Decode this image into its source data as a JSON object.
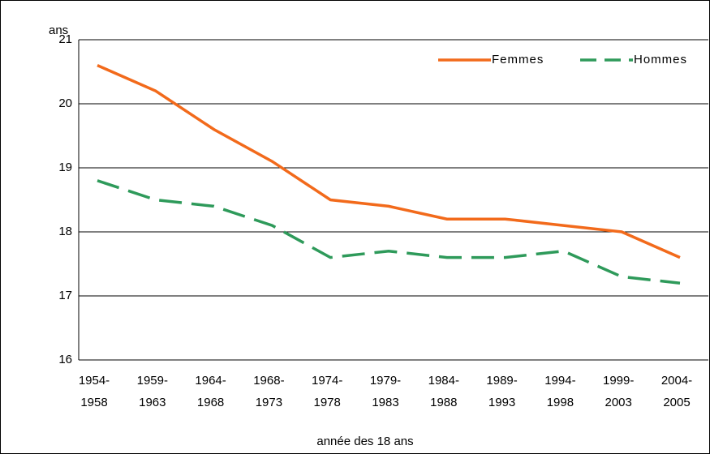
{
  "chart_data": {
    "type": "line",
    "y_label": "ans",
    "x_label": "année des 18 ans",
    "categories": [
      [
        "1954-",
        "1958"
      ],
      [
        "1959-",
        "1963"
      ],
      [
        "1964-",
        "1968"
      ],
      [
        "1968-",
        "1973"
      ],
      [
        "1974-",
        "1978"
      ],
      [
        "1979-",
        "1983"
      ],
      [
        "1984-",
        "1988"
      ],
      [
        "1989-",
        "1993"
      ],
      [
        "1994-",
        "1998"
      ],
      [
        "1999-",
        "2003"
      ],
      [
        "2004-",
        "2005"
      ]
    ],
    "series": [
      {
        "name": "Femmes",
        "color": "#f26a1b",
        "dashed": false,
        "values": [
          20.6,
          20.2,
          19.6,
          19.1,
          18.5,
          18.4,
          18.2,
          18.2,
          18.1,
          18.0,
          17.6
        ]
      },
      {
        "name": "Hommes",
        "color": "#2e9a5a",
        "dashed": true,
        "values": [
          18.8,
          18.5,
          18.4,
          18.1,
          17.6,
          17.7,
          17.6,
          17.6,
          17.7,
          17.3,
          17.2
        ]
      }
    ],
    "ylim": [
      16,
      21
    ],
    "yticks": [
      16,
      17,
      18,
      19,
      20,
      21
    ],
    "grid": true,
    "legend": "top-right"
  }
}
